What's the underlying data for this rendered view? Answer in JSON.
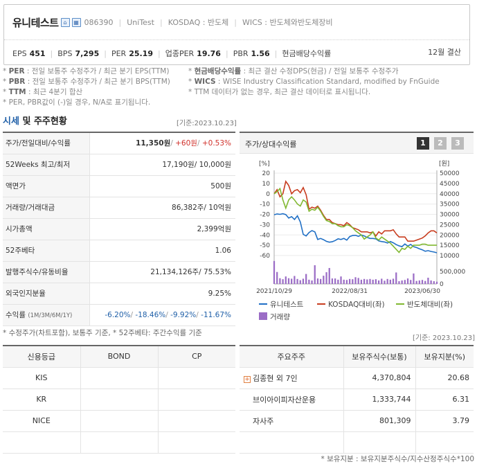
{
  "header": {
    "company_name": "유니테스트",
    "stock_code": "086390",
    "english_name": "UniTest",
    "market": "KOSDAQ : 반도체",
    "wics": "WICS : 반도체와반도체장비",
    "icon_home": "home-icon",
    "icon_shop": "building-icon",
    "metrics": [
      {
        "label": "EPS",
        "value": "451"
      },
      {
        "label": "BPS",
        "value": "7,295"
      },
      {
        "label": "PER",
        "value": "25.19"
      },
      {
        "label": "업종PER",
        "value": "19.76"
      },
      {
        "label": "PBR",
        "value": "1.56"
      },
      {
        "label": "현금배당수익률",
        "value": ""
      }
    ],
    "settlement": "12월 결산"
  },
  "notes": [
    {
      "key": "PER",
      "text": ": 전일 보통주 수정주가 / 최근 분기 EPS(TTM)"
    },
    {
      "key": "현금배당수익률",
      "text": ": 최근 결산 수정DPS(현금) / 전일 보통주 수정주가"
    },
    {
      "key": "PBR",
      "text": ": 전일 보통주 수정주가 / 최근 분기 BPS(TTM)"
    },
    {
      "key": "WICS",
      "text": ": WISE Industry Classification Standard, modified by FnGuide"
    },
    {
      "key": "TTM",
      "text": ": 최근 4분기 합산"
    },
    {
      "key": "",
      "text": "TTM 데이터가 없는 경우, 최근 결산 데이터로 표시됩니다."
    },
    {
      "key": "",
      "text": "PER, PBR값이 (-)일 경우, N/A로 표기됩니다."
    }
  ],
  "section": {
    "title_blue": "시세",
    "title_rest": "및 주주현황",
    "base_date": "[기준:2023.10.23]"
  },
  "price_table": [
    {
      "label": "주가/전일대비/수익률",
      "v1": "11,350원",
      "v2": "+60원",
      "v3": "+0.53%"
    },
    {
      "label": "52Weeks 최고/최저",
      "value": "17,190원/ 10,000원"
    },
    {
      "label": "액면가",
      "value": "500원"
    },
    {
      "label": "거래량/거래대금",
      "value": "86,382주/ 10억원"
    },
    {
      "label": "시가총액",
      "value": "2,399억원"
    },
    {
      "label": "52주베타",
      "value": "1.06"
    },
    {
      "label": "발행주식수/유동비율",
      "value": "21,134,126주/ 75.53%"
    },
    {
      "label": "외국인지분율",
      "value": "9.25%"
    },
    {
      "label": "수익률",
      "sublabel": "(1M/3M/6M/1Y)",
      "r1": "-6.20%",
      "r2": "-18.46%",
      "r3": "-9.92%",
      "r4": "-11.67%"
    }
  ],
  "price_note": "* 수정주가(차트포함), 보통주 기준, * 52주베타: 주간수익률 기준",
  "chart_panel": {
    "title": "주가/상대수익률",
    "pages": [
      "1",
      "2",
      "3"
    ],
    "active_page": "1"
  },
  "chart_data": {
    "type": "line",
    "left_unit": "[%]",
    "right_unit": "[원]",
    "left_ticks": [
      "20",
      "10",
      "0",
      "-10",
      "-20",
      "-30",
      "-40",
      "-50",
      "-60"
    ],
    "left_range": [
      -60,
      20
    ],
    "right_ticks": [
      "50000",
      "45000",
      "40000",
      "35000",
      "30000",
      "25000",
      "20000",
      "15000",
      "10000"
    ],
    "right_range": [
      10000,
      50000
    ],
    "volume_ticks": [
      "500,000",
      "0"
    ],
    "volume_range": [
      0,
      1000000
    ],
    "x_ticks": [
      "2021/10/29",
      "2022/08/31",
      "2023/06/30"
    ],
    "x_tick_index": [
      0,
      26,
      51
    ],
    "series": [
      {
        "name": "유니테스트",
        "color": "#1f6fc5",
        "axis": "right",
        "values": [
          29800,
          30200,
          30000,
          30300,
          29900,
          28200,
          28900,
          27500,
          29300,
          26300,
          20300,
          19500,
          21200,
          22100,
          21500,
          17800,
          18300,
          17700,
          16900,
          16500,
          16700,
          17300,
          18100,
          17800,
          18300,
          17500,
          19200,
          19700,
          19800,
          19300,
          20000,
          19500,
          18800,
          18300,
          18300,
          18100,
          17100,
          16800,
          16600,
          16100,
          16800,
          16200,
          15300,
          14700,
          14300,
          15600,
          14600,
          15400,
          14300,
          13900,
          13300,
          12800,
          12100,
          12400,
          12000,
          11700,
          11350
        ]
      },
      {
        "name": "KOSDAQ대비(좌)",
        "color": "#c83c1e",
        "axis": "left",
        "values": [
          0,
          4,
          -3,
          0,
          12,
          8,
          0,
          3,
          4,
          1,
          6,
          -1,
          -15,
          -13,
          -14,
          -12,
          -16,
          -21,
          -25,
          -25,
          -28,
          -29,
          -30,
          -30,
          -31,
          -28,
          -30,
          -33,
          -34,
          -35,
          -37,
          -37,
          -37,
          -38,
          -37,
          -41,
          -37,
          -39,
          -36,
          -36,
          -36,
          -35,
          -39,
          -42,
          -42,
          -42,
          -46,
          -46,
          -46,
          -45,
          -44,
          -43,
          -41,
          -38,
          -36,
          -36,
          -38
        ]
      },
      {
        "name": "반도체대비(좌)",
        "color": "#80b830",
        "axis": "left",
        "values": [
          0,
          2,
          5,
          -6,
          -14,
          -6,
          -3,
          -6,
          -10,
          -12,
          -6,
          -8,
          -17,
          -15,
          -16,
          -13,
          -17,
          -22,
          -26,
          -27,
          -29,
          -29,
          -31,
          -32,
          -32,
          -30,
          -31,
          -33,
          -36,
          -38,
          -40,
          -44,
          -42,
          -40,
          -37,
          -43,
          -45,
          -42,
          -44,
          -46,
          -48,
          -51,
          -54,
          -57,
          -53,
          -54,
          -51,
          -53,
          -50,
          -50,
          -50,
          -49,
          -49,
          -50,
          -50,
          -50,
          -50
        ]
      }
    ],
    "volume": {
      "name": "거래량",
      "color": "#9b6dc6",
      "values": [
        920000,
        480000,
        230000,
        190000,
        300000,
        230000,
        210000,
        320000,
        200000,
        150000,
        210000,
        400000,
        170000,
        140000,
        750000,
        220000,
        200000,
        330000,
        470000,
        640000,
        220000,
        220000,
        170000,
        300000,
        170000,
        160000,
        200000,
        190000,
        270000,
        240000,
        170000,
        200000,
        180000,
        200000,
        170000,
        190000,
        140000,
        210000,
        130000,
        200000,
        170000,
        210000,
        460000,
        110000,
        140000,
        160000,
        220000,
        160000,
        420000,
        120000,
        140000,
        160000,
        120000,
        250000,
        140000,
        110000,
        90000
      ]
    }
  },
  "credit_table": {
    "headers": [
      "신용등급",
      "BOND",
      "CP"
    ],
    "rows": [
      {
        "agency": "KIS",
        "bond": "",
        "cp": ""
      },
      {
        "agency": "KR",
        "bond": "",
        "cp": ""
      },
      {
        "agency": "NICE",
        "bond": "",
        "cp": ""
      },
      {
        "agency": "",
        "bond": "",
        "cp": ""
      }
    ]
  },
  "holders": {
    "base_date": "[기준: 2023.10.23]",
    "headers": [
      "주요주주",
      "보유주식수(보통)",
      "보유지분(%)"
    ],
    "rows": [
      {
        "name": "김종현 외 7인",
        "shares": "4,370,804",
        "pct": "20.68",
        "expand": "+"
      },
      {
        "name": "브이아이피자산운용",
        "shares": "1,333,744",
        "pct": "6.31",
        "expand": ""
      },
      {
        "name": "자사주",
        "shares": "801,309",
        "pct": "3.79",
        "expand": ""
      },
      {
        "name": "",
        "shares": "",
        "pct": "",
        "expand": ""
      }
    ],
    "note": "* 보유지분 : 보유지분주식수/지수산정주식수*100"
  }
}
